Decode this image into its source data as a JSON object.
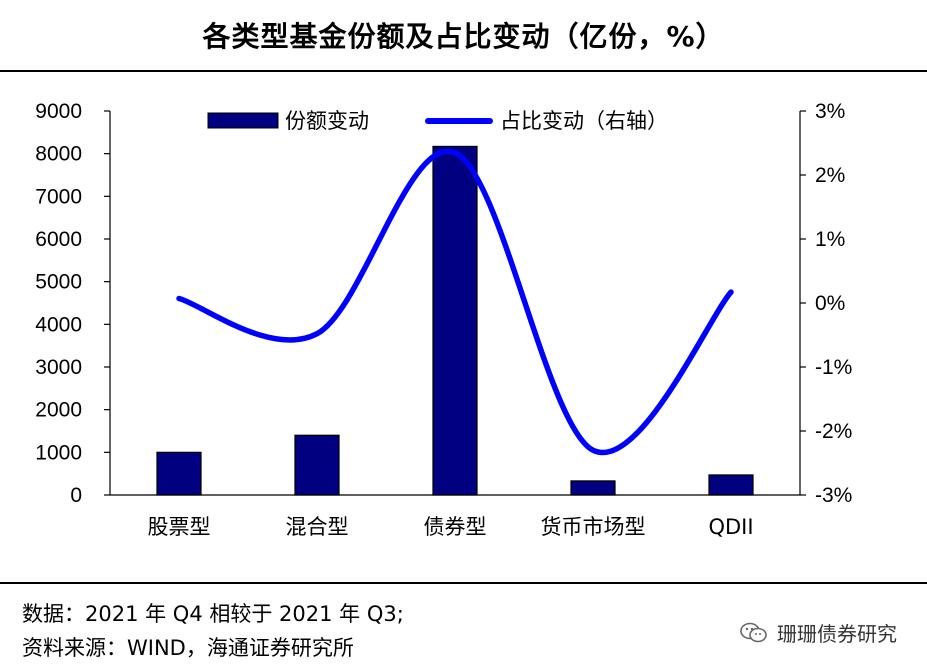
{
  "title": "各类型基金份额及占比变动（亿份，%）",
  "chart_data": {
    "type": "bar+line",
    "categories": [
      "股票型",
      "混合型",
      "债券型",
      "货币市场型",
      "QDII"
    ],
    "series": [
      {
        "name": "份额变动",
        "type": "bar",
        "axis": "left",
        "values": [
          1000,
          1400,
          8170,
          330,
          470
        ],
        "color": "#000080"
      },
      {
        "name": "占比变动（右轴）",
        "type": "line",
        "axis": "right",
        "smooth": true,
        "values": [
          0.07,
          -0.48,
          2.35,
          -2.3,
          0.17
        ],
        "color": "#0000ff"
      }
    ],
    "y_left": {
      "min": 0,
      "max": 9000,
      "ticks": [
        "0",
        "1000",
        "2000",
        "3000",
        "4000",
        "5000",
        "6000",
        "7000",
        "8000",
        "9000"
      ]
    },
    "y_right": {
      "min": -3,
      "max": 3,
      "ticks": [
        "-3%",
        "-2%",
        "-1%",
        "0%",
        "1%",
        "2%",
        "3%"
      ]
    },
    "legend": {
      "position": "top"
    },
    "grid": false
  },
  "footer": {
    "line1": "数据：2021 年 Q4 相较于 2021 年 Q3;",
    "line2": "资料来源：WIND，海通证券研究所"
  },
  "brand": {
    "name": "珊珊债券研究",
    "icon": "wechat-icon"
  }
}
